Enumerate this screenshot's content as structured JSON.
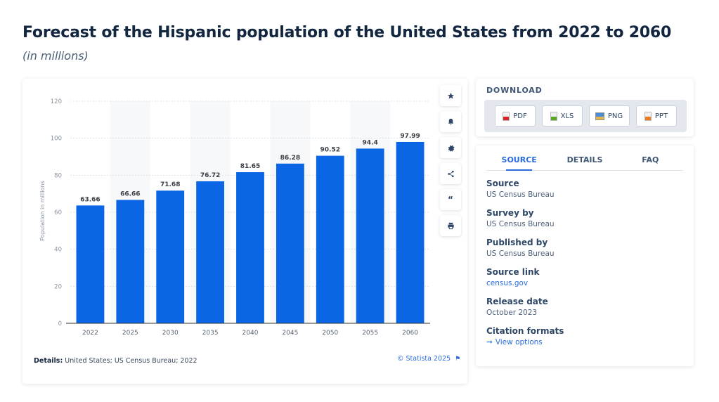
{
  "page": {
    "title": "Forecast of the Hispanic population of the United States from 2022 to 2060",
    "subtitle": "(in millions)"
  },
  "toolbar": {
    "items": [
      {
        "icon": "star-icon",
        "label": "Favorite"
      },
      {
        "icon": "bell-icon",
        "label": "Notifications"
      },
      {
        "icon": "gear-icon",
        "label": "Settings"
      },
      {
        "icon": "share-icon",
        "label": "Share"
      },
      {
        "icon": "quote-icon",
        "label": "Cite"
      },
      {
        "icon": "print-icon",
        "label": "Print"
      }
    ]
  },
  "footer": {
    "details_label": "Details:",
    "details_text": "United States; US Census Bureau; 2022",
    "copyright": "© Statista 2025"
  },
  "download": {
    "label": "DOWNLOAD",
    "buttons": [
      {
        "label": "PDF",
        "color": "#d9262b"
      },
      {
        "label": "XLS",
        "color": "#5aa829"
      },
      {
        "label": "PNG",
        "color": "#4a8dd6"
      },
      {
        "label": "PPT",
        "color": "#ee7a22"
      }
    ]
  },
  "source_panel": {
    "tabs": [
      {
        "label": "SOURCE",
        "active": true
      },
      {
        "label": "DETAILS",
        "active": false
      },
      {
        "label": "FAQ",
        "active": false
      }
    ],
    "items": [
      {
        "label": "Source",
        "value": "US Census Bureau"
      },
      {
        "label": "Survey by",
        "value": "US Census Bureau"
      },
      {
        "label": "Published by",
        "value": "US Census Bureau"
      },
      {
        "label": "Source link",
        "value": "census.gov"
      },
      {
        "label": "Release date",
        "value": "October 2023"
      },
      {
        "label": "Citation formats",
        "value": "View options"
      }
    ]
  },
  "colors": {
    "bar": "#0a66e4",
    "accent": "#2a6ce0"
  },
  "chart_data": {
    "type": "bar",
    "title": "Forecast of the Hispanic population of the United States from 2022 to 2060",
    "subtitle": "(in millions)",
    "xlabel": "",
    "ylabel": "Population in millions",
    "categories": [
      "2022",
      "2025",
      "2030",
      "2035",
      "2040",
      "2045",
      "2050",
      "2055",
      "2060"
    ],
    "values": [
      63.66,
      66.66,
      71.68,
      76.72,
      81.65,
      86.28,
      90.52,
      94.4,
      97.99
    ],
    "value_labels": [
      "63.66",
      "66.66",
      "71.68",
      "76.72",
      "81.65",
      "86.28",
      "90.52",
      "94.4",
      "97.99"
    ],
    "ylim": [
      0,
      120
    ],
    "yticks": [
      0,
      20,
      40,
      60,
      80,
      100,
      120
    ],
    "grid": true,
    "legend": "none"
  }
}
